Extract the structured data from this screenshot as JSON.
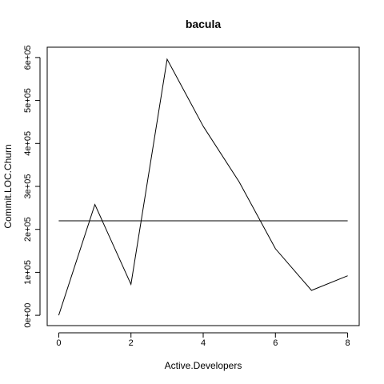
{
  "chart_data": {
    "type": "line",
    "title": "bacula",
    "xlabel": "Active.Developers",
    "ylabel": "Commit.LOC.Churn",
    "xlim": [
      -0.32,
      8.32
    ],
    "ylim": [
      -24000,
      624000
    ],
    "x_ticks": [
      0,
      2,
      4,
      6,
      8
    ],
    "x_tick_labels": [
      "0",
      "2",
      "4",
      "6",
      "8"
    ],
    "y_ticks": [
      0,
      100000,
      200000,
      300000,
      400000,
      500000,
      600000
    ],
    "y_tick_labels": [
      "0e+00",
      "1e+05",
      "2e+05",
      "3e+05",
      "4e+05",
      "5e+05",
      "6e+05"
    ],
    "grid": false,
    "series": [
      {
        "x": [
          0,
          1,
          2,
          3,
          4,
          5,
          6,
          7,
          8
        ],
        "values": [
          0,
          258000,
          72000,
          596000,
          440000,
          310000,
          155000,
          58000,
          92000
        ]
      },
      {
        "x": [
          0,
          8
        ],
        "values": [
          220000,
          220000
        ]
      }
    ]
  }
}
